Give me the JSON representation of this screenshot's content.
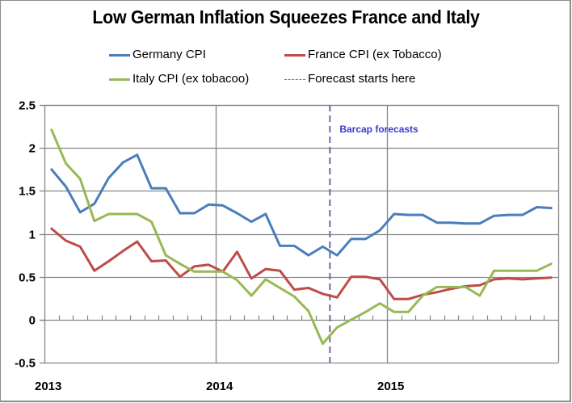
{
  "chart_data": {
    "type": "line",
    "title": "Low German Inflation Squeezes France and Italy",
    "xlabel": "",
    "ylabel": "",
    "ylim": [
      -0.5,
      2.5
    ],
    "yticks": [
      "2.5",
      "2",
      "1.5",
      "1",
      "0.5",
      "0",
      "-0.5"
    ],
    "ytick_values": [
      2.5,
      2,
      1.5,
      1,
      0.5,
      0,
      -0.5
    ],
    "xtick_labels": [
      "2013",
      "2014",
      "2015"
    ],
    "grid": true,
    "legend_position": "top",
    "x": [
      "2013-01",
      "2013-02",
      "2013-03",
      "2013-04",
      "2013-05",
      "2013-06",
      "2013-07",
      "2013-08",
      "2013-09",
      "2013-10",
      "2013-11",
      "2013-12",
      "2014-01",
      "2014-02",
      "2014-03",
      "2014-04",
      "2014-05",
      "2014-06",
      "2014-07",
      "2014-08",
      "2014-09",
      "2014-10",
      "2014-11",
      "2014-12",
      "2015-01",
      "2015-02",
      "2015-03",
      "2015-04",
      "2015-05",
      "2015-06",
      "2015-07",
      "2015-08",
      "2015-09",
      "2015-10",
      "2015-11",
      "2015-12"
    ],
    "series": [
      {
        "name": "Germany CPI",
        "color": "#4a7ebb",
        "values": [
          1.75,
          1.55,
          1.25,
          1.35,
          1.65,
          1.83,
          1.92,
          1.53,
          1.53,
          1.24,
          1.24,
          1.34,
          1.33,
          1.24,
          1.14,
          1.23,
          0.86,
          0.86,
          0.75,
          0.85,
          0.75,
          0.94,
          0.94,
          1.04,
          1.23,
          1.22,
          1.22,
          1.13,
          1.13,
          1.12,
          1.12,
          1.21,
          1.22,
          1.22,
          1.31,
          1.3
        ]
      },
      {
        "name": "France CPI (ex Tobacco)",
        "color": "#be4b48",
        "values": [
          1.06,
          0.92,
          0.85,
          0.57,
          0.68,
          0.8,
          0.91,
          0.68,
          0.69,
          0.5,
          0.62,
          0.64,
          0.56,
          0.79,
          0.48,
          0.59,
          0.57,
          0.35,
          0.37,
          0.3,
          0.26,
          0.5,
          0.5,
          0.47,
          0.24,
          0.24,
          0.29,
          0.32,
          0.36,
          0.39,
          0.4,
          0.47,
          0.48,
          0.47,
          0.48,
          0.49
        ]
      },
      {
        "name": "Italy CPI (ex tobacoo)",
        "color": "#98b954",
        "values": [
          2.21,
          1.82,
          1.64,
          1.15,
          1.23,
          1.23,
          1.23,
          1.14,
          0.75,
          0.65,
          0.56,
          0.56,
          0.56,
          0.46,
          0.28,
          0.47,
          0.37,
          0.27,
          0.1,
          -0.28,
          -0.09,
          0.0,
          0.09,
          0.19,
          0.09,
          0.09,
          0.28,
          0.38,
          0.38,
          0.38,
          0.28,
          0.57,
          0.57,
          0.57,
          0.57,
          0.65
        ]
      }
    ],
    "forecast_line": {
      "label": "Forecast starts here",
      "color": "#7f5fa8",
      "position_between": [
        "2014-08",
        "2014-09"
      ]
    },
    "annotations": [
      {
        "text": "Barcap forecasts",
        "color": "#3b3bd0"
      }
    ]
  }
}
